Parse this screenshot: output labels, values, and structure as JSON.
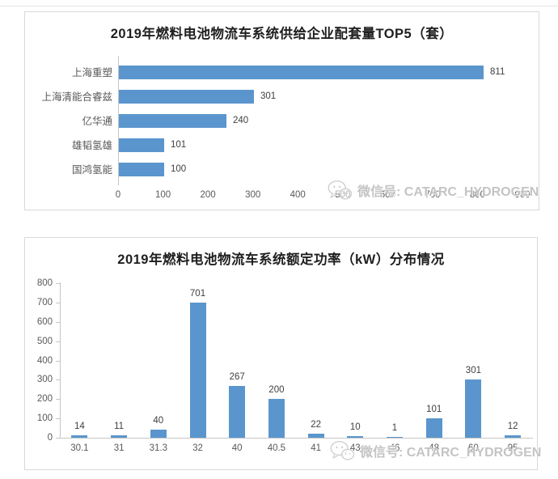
{
  "watermark": {
    "icon": "wechat-icon",
    "text": "微信号: CATARC_HYDROGEN"
  },
  "colors": {
    "bar": "#5a96cd",
    "axis": "#c6c6c6",
    "panel_border": "#d9d9d9",
    "title_text": "#1f1f1f",
    "data_label": "#3f3f3f",
    "tick_label": "#595959",
    "watermark_text": "#bababa"
  },
  "chart_data": [
    {
      "type": "bar",
      "orientation": "horizontal",
      "title": "2019年燃料电池物流车系统供给企业配套量TOP5（套）",
      "categories": [
        "上海重塑",
        "上海清能合睿兹",
        "亿华通",
        "雄韬氢雄",
        "国鸿氢能"
      ],
      "values": [
        811,
        301,
        240,
        101,
        100
      ],
      "xlabel": "",
      "ylabel": "",
      "xlim": [
        0,
        900
      ],
      "x_ticks": [
        0,
        100,
        200,
        300,
        400,
        500,
        600,
        700,
        800,
        900
      ],
      "data_labels": true,
      "legend": false,
      "grid": false
    },
    {
      "type": "bar",
      "orientation": "vertical",
      "title": "2019年燃料电池物流车系统额定功率（kW）分布情况",
      "categories": [
        "30.1",
        "31",
        "31.3",
        "32",
        "40",
        "40.5",
        "41",
        "43",
        "46",
        "48",
        "60",
        "95"
      ],
      "values": [
        14,
        11,
        40,
        701,
        267,
        200,
        22,
        10,
        1,
        101,
        301,
        12
      ],
      "xlabel": "",
      "ylabel": "",
      "ylim": [
        0,
        800
      ],
      "y_ticks": [
        0,
        100,
        200,
        300,
        400,
        500,
        600,
        700,
        800
      ],
      "data_labels": true,
      "legend": false,
      "grid": false
    }
  ]
}
